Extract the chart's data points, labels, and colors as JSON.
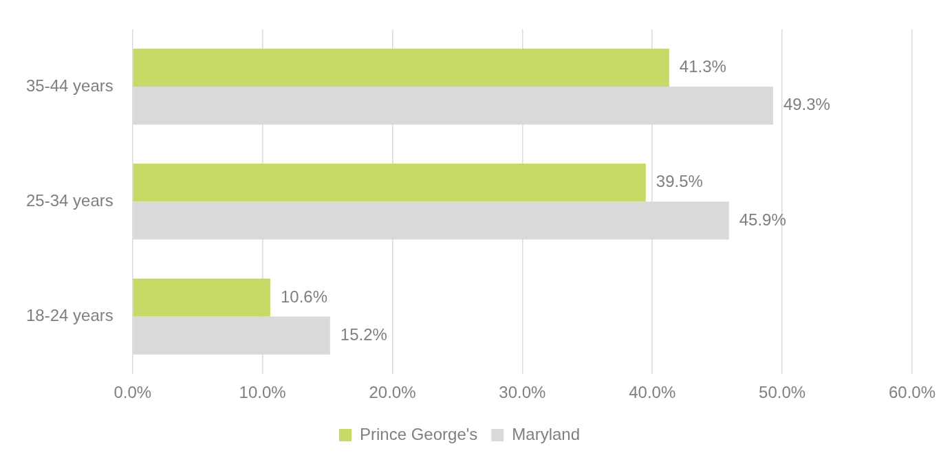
{
  "chart_data": {
    "type": "bar",
    "orientation": "horizontal",
    "categories": [
      "35-44 years",
      "25-34 years",
      "18-24 years"
    ],
    "series": [
      {
        "name": "Prince George's",
        "color": "#c6d966",
        "values": [
          41.3,
          39.5,
          10.6
        ],
        "value_labels": [
          "41.3%",
          "39.5%",
          "10.6%"
        ]
      },
      {
        "name": "Maryland",
        "color": "#d9d9d9",
        "values": [
          49.3,
          45.9,
          15.2
        ],
        "value_labels": [
          "49.3%",
          "45.9%",
          "15.2%"
        ]
      }
    ],
    "xlim": [
      0,
      60
    ],
    "xticks": [
      {
        "value": 0,
        "label": "0.0%"
      },
      {
        "value": 10,
        "label": "10.0%"
      },
      {
        "value": 20,
        "label": "20.0%"
      },
      {
        "value": 30,
        "label": "30.0%"
      },
      {
        "value": 40,
        "label": "40.0%"
      },
      {
        "value": 50,
        "label": "50.0%"
      },
      {
        "value": 60,
        "label": "60.0%"
      }
    ],
    "grid": "x",
    "legend": "bottom"
  }
}
